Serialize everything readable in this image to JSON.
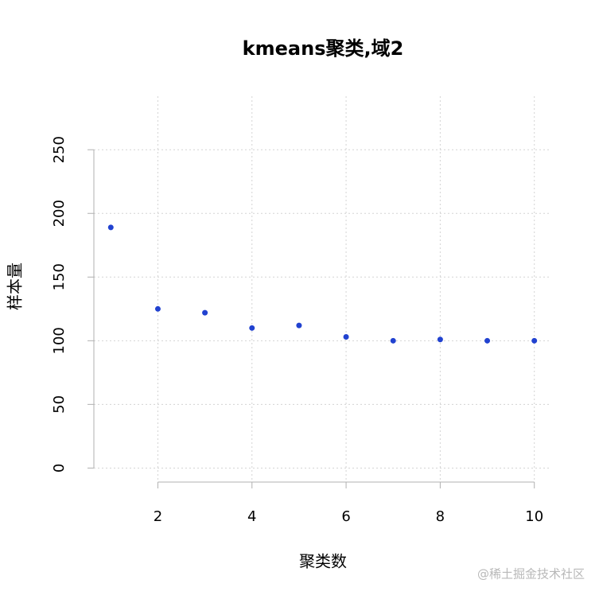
{
  "chart_data": {
    "type": "scatter",
    "title": "kmeans聚类,域2",
    "x_label": "聚类数",
    "y_label": "样本量",
    "x": [
      1,
      2,
      3,
      4,
      5,
      6,
      7,
      8,
      9,
      10
    ],
    "values": [
      189,
      125,
      122,
      110,
      112,
      103,
      100,
      101,
      100,
      100
    ],
    "color": "#2142d0",
    "xlim": [
      0.64,
      10.36
    ],
    "ylim": [
      -11,
      292
    ],
    "xticks": [
      2,
      4,
      6,
      8,
      10
    ],
    "yticks": [
      0,
      50,
      100,
      150,
      200,
      250
    ],
    "grid": true
  },
  "watermark": "@稀土掘金技术社区"
}
